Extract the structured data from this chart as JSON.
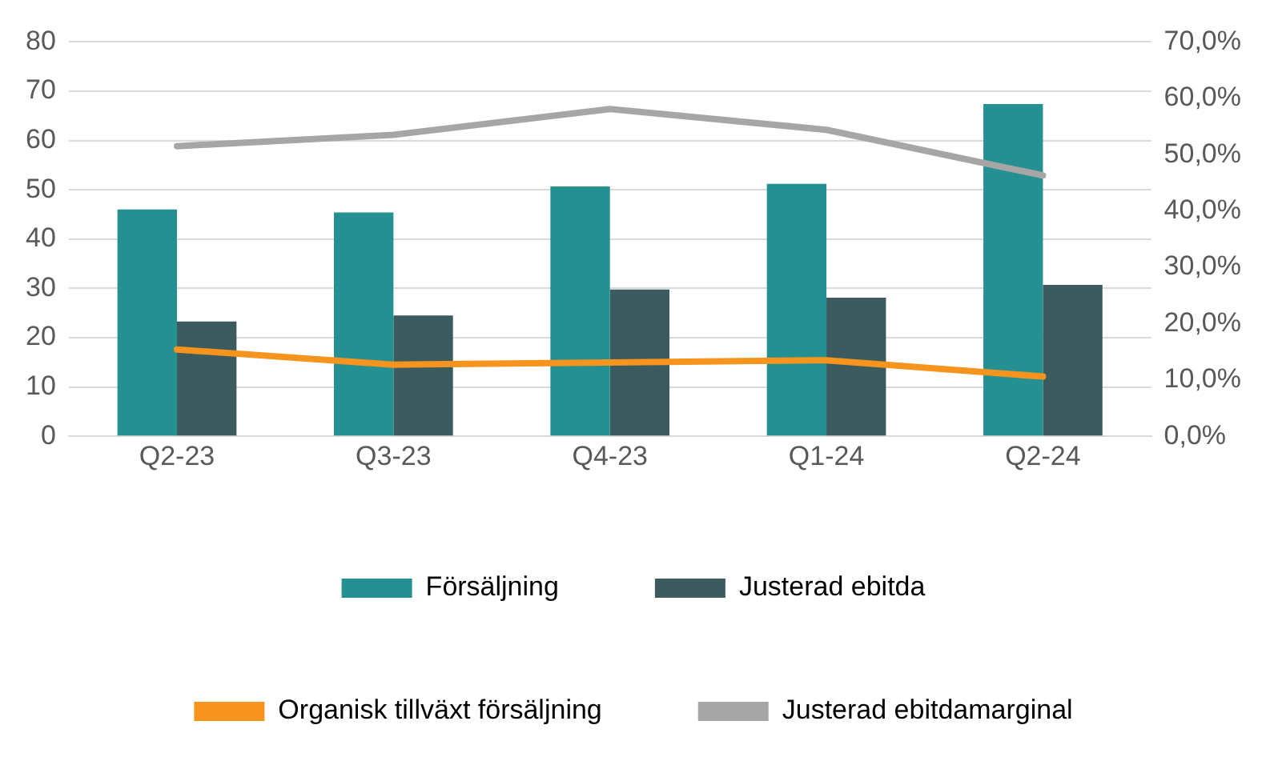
{
  "chart_data": {
    "type": "bar",
    "categories": [
      "Q2-23",
      "Q3-23",
      "Q4-23",
      "Q1-24",
      "Q2-24"
    ],
    "series": [
      {
        "name": "Försäljning",
        "color": "#259092",
        "values": [
          46,
          45.4,
          50.7,
          51.2,
          67.4
        ]
      },
      {
        "name": "Justerad ebitda",
        "color": "#3b5b5f",
        "values": [
          23.3,
          24.5,
          29.8,
          28.1,
          30.7
        ]
      },
      {
        "name": "Organisk tillväxt försäljning",
        "type": "line",
        "axis": "y2",
        "color": "#f7941d",
        "values": [
          15.4,
          12.7,
          13.1,
          13.5,
          10.6
        ]
      },
      {
        "name": "Justerad ebitdamarginal",
        "type": "line",
        "axis": "y2",
        "color": "#a6a6a6",
        "values": [
          51.5,
          53.5,
          58.1,
          54.4,
          46.3
        ]
      }
    ],
    "ylim": [
      0,
      80
    ],
    "yticks": [
      0,
      10,
      20,
      30,
      40,
      50,
      60,
      70,
      80
    ],
    "y2lim": [
      0,
      70
    ],
    "y2ticks": [
      {
        "value": 0,
        "label": "0,0%"
      },
      {
        "value": 10,
        "label": "10,0%"
      },
      {
        "value": 20,
        "label": "20,0%"
      },
      {
        "value": 30,
        "label": "30,0%"
      },
      {
        "value": 40,
        "label": "40,0%"
      },
      {
        "value": 50,
        "label": "50,0%"
      },
      {
        "value": 60,
        "label": "60,0%"
      },
      {
        "value": 70,
        "label": "70,0%"
      }
    ],
    "grid": "y",
    "legend": "bottom",
    "marker": "none"
  }
}
